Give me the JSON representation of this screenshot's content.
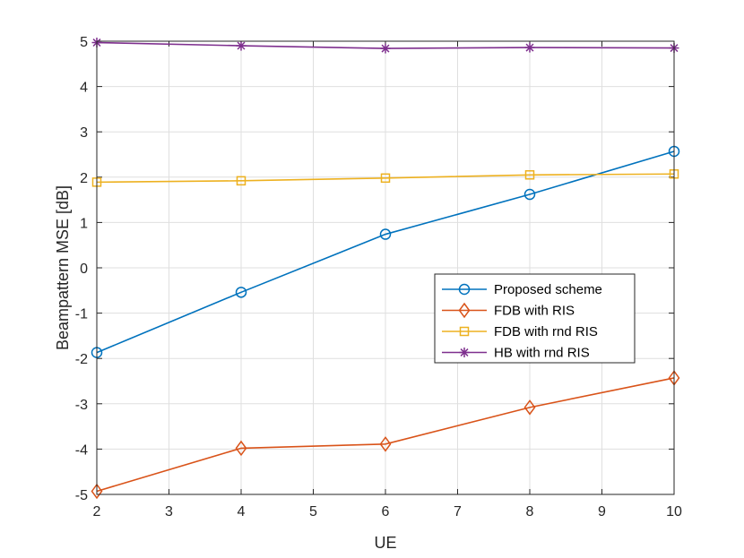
{
  "chart_data": {
    "type": "line",
    "title": "",
    "xlabel": "UE",
    "ylabel": "Beampattern MSE [dB]",
    "xlim": [
      2,
      10
    ],
    "ylim": [
      -5,
      5
    ],
    "xticks": [
      2,
      3,
      4,
      5,
      6,
      7,
      8,
      9,
      10
    ],
    "yticks": [
      -5,
      -4,
      -3,
      -2,
      -1,
      0,
      1,
      2,
      3,
      4,
      5
    ],
    "grid": true,
    "legend_position": "center-right",
    "x": [
      2,
      4,
      6,
      8,
      10
    ],
    "series": [
      {
        "name": "Proposed scheme",
        "marker": "circle",
        "color": "#0072BD",
        "values": [
          -1.87,
          -0.54,
          0.74,
          1.62,
          2.57
        ]
      },
      {
        "name": "FDB with RIS",
        "marker": "diamond",
        "color": "#D95319",
        "values": [
          -4.93,
          -3.98,
          -3.89,
          -3.08,
          -2.43
        ]
      },
      {
        "name": "FDB with rnd RIS",
        "marker": "square",
        "color": "#EDB120",
        "values": [
          1.89,
          1.92,
          1.98,
          2.05,
          2.07
        ]
      },
      {
        "name": "HB with rnd RIS",
        "marker": "asterisk",
        "color": "#7E2F8E",
        "values": [
          4.97,
          4.9,
          4.84,
          4.86,
          4.85
        ]
      }
    ]
  }
}
